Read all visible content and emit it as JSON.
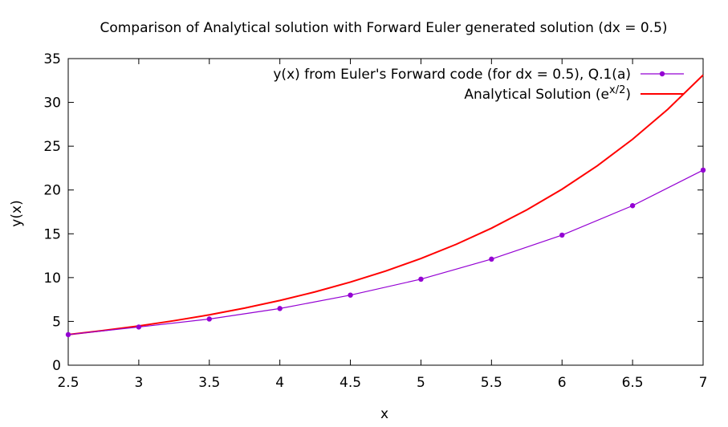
{
  "chart_data": {
    "type": "line",
    "title": "Comparison of Analytical solution with Forward Euler generated solution (dx = 0.5)",
    "xlabel": "x",
    "ylabel": "y(x)",
    "xlim": [
      2.5,
      7
    ],
    "ylim": [
      0,
      35
    ],
    "x_ticks": [
      2.5,
      3,
      3.5,
      4,
      4.5,
      5,
      5.5,
      6,
      6.5,
      7
    ],
    "x_tick_labels": [
      "2.5",
      "3",
      "3.5",
      "4",
      "4.5",
      "5",
      "5.5",
      "6",
      "6.5",
      "7"
    ],
    "y_ticks": [
      0,
      5,
      10,
      15,
      20,
      25,
      30,
      35
    ],
    "y_tick_labels": [
      "0",
      "5",
      "10",
      "15",
      "20",
      "25",
      "30",
      "35"
    ],
    "grid": false,
    "legend_position": "top-right",
    "series": [
      {
        "name": "y(x) from Euler's Forward code (for dx = 0.5), Q.1(a)",
        "color": "#9400d3",
        "style": "line-points",
        "x": [
          2.5,
          3,
          3.5,
          4,
          4.5,
          5,
          5.5,
          6,
          6.5,
          7
        ],
        "y": [
          3.49,
          4.36,
          5.27,
          6.47,
          8.0,
          9.82,
          12.11,
          14.85,
          18.21,
          22.27
        ]
      },
      {
        "name_prefix": "Analytical Solution (e",
        "name_superscript": "x/2",
        "name_suffix": ")",
        "color": "#ff0000",
        "style": "line",
        "x": [
          2.5,
          2.75,
          3,
          3.25,
          3.5,
          3.75,
          4,
          4.25,
          4.5,
          4.75,
          5,
          5.25,
          5.5,
          5.75,
          6,
          6.25,
          6.5,
          6.75,
          7
        ],
        "y": [
          3.49,
          3.96,
          4.48,
          5.08,
          5.75,
          6.52,
          7.39,
          8.37,
          9.49,
          10.75,
          12.18,
          13.8,
          15.64,
          17.73,
          20.09,
          22.76,
          25.79,
          29.22,
          33.12
        ]
      }
    ]
  }
}
